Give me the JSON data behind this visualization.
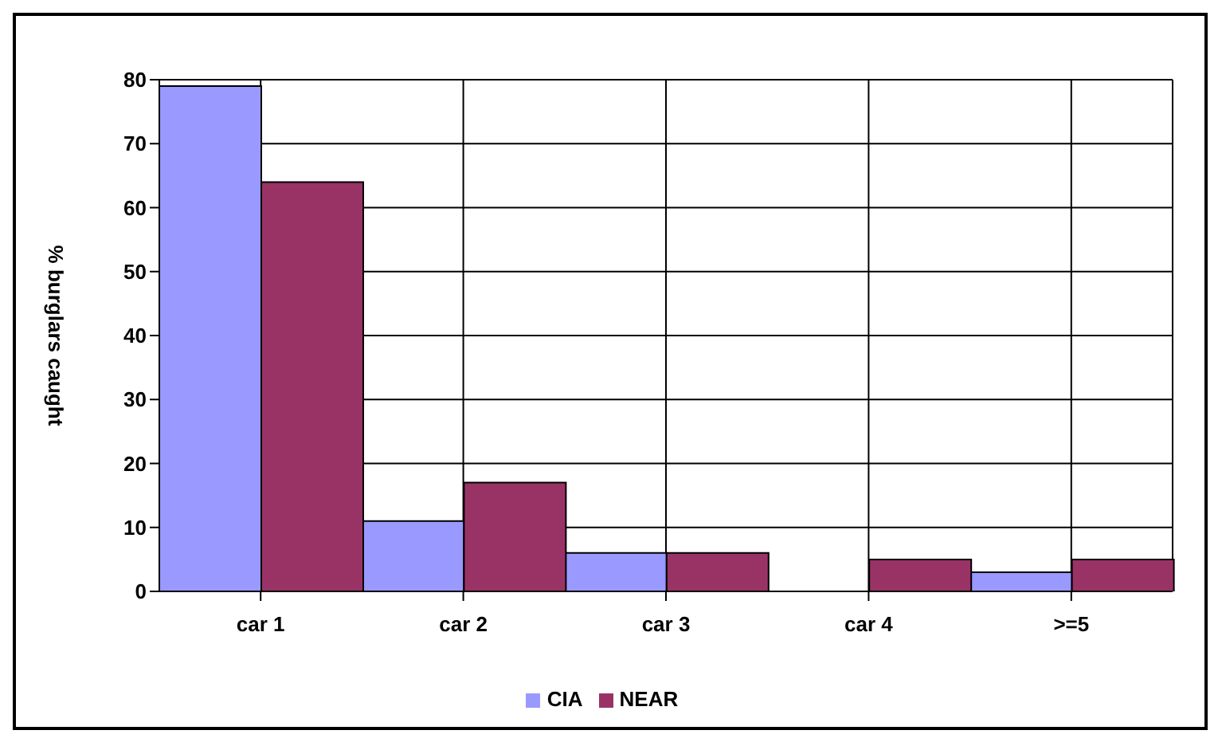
{
  "chart_data": {
    "type": "bar",
    "ylabel": "% burglars caught",
    "categories": [
      "car 1",
      "car 2",
      "car 3",
      "car 4",
      ">=5"
    ],
    "series": [
      {
        "name": "CIA",
        "color": "#9999ff",
        "values": [
          79,
          11,
          6,
          0,
          3
        ]
      },
      {
        "name": "NEAR",
        "color": "#993366",
        "values": [
          64,
          17,
          6,
          5,
          5
        ]
      }
    ],
    "ylim": [
      0,
      80
    ],
    "yticks": [
      0,
      10,
      20,
      30,
      40,
      50,
      60,
      70,
      80
    ],
    "grid": true,
    "legend": "bottom"
  }
}
